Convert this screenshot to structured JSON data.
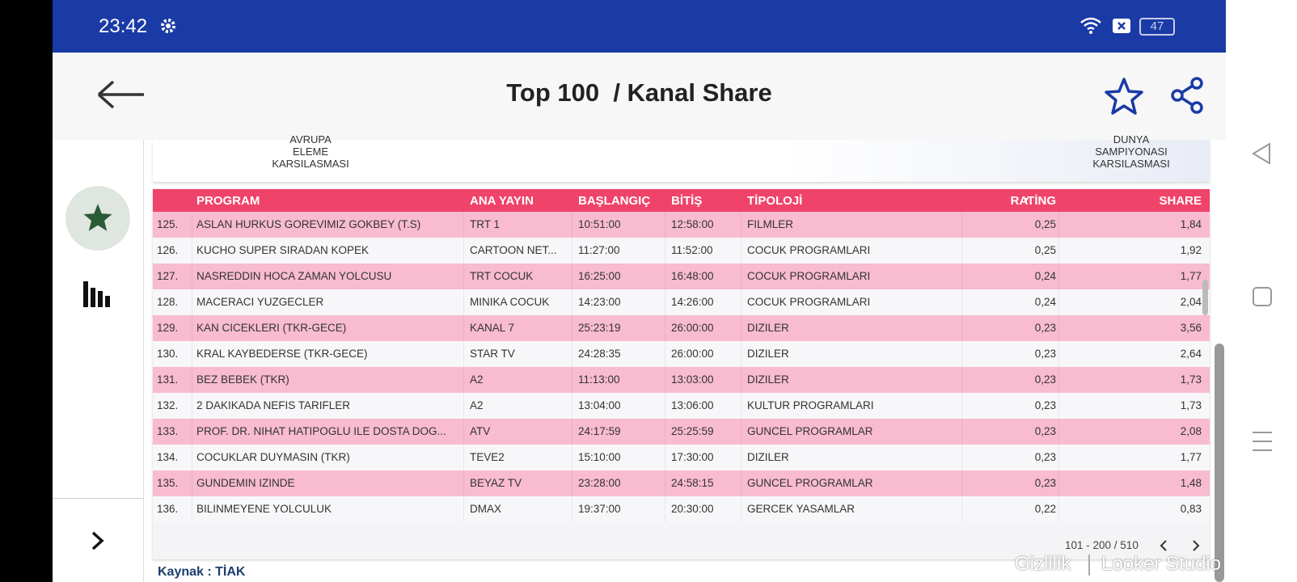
{
  "status": {
    "time": "23:42",
    "battery": "47"
  },
  "header": {
    "title": "Top 100  / Kanal Share"
  },
  "banner": {
    "left": [
      "AVRUPA",
      "ELEME",
      "KARSILASMASI"
    ],
    "right": [
      "DUNYA",
      "SAMPIYONASI",
      "KARSILASMASI"
    ]
  },
  "table": {
    "columns": [
      "",
      "PROGRAM",
      "ANA YAYIN",
      "BAŞLANGIÇ",
      "BİTİŞ",
      "TİPOLOJİ",
      "RATİNG",
      "SHARE"
    ],
    "rows": [
      [
        "125.",
        "ASLAN HURKUS GOREVIMIZ GOKBEY (T.S)",
        "TRT 1",
        "10:51:00",
        "12:58:00",
        "FILMLER",
        "0,25",
        "1,84"
      ],
      [
        "126.",
        "KUCHO SUPER SIRADAN KOPEK",
        "CARTOON NET...",
        "11:27:00",
        "11:52:00",
        "COCUK PROGRAMLARI",
        "0,25",
        "1,92"
      ],
      [
        "127.",
        "NASREDDIN HOCA ZAMAN YOLCUSU",
        "TRT COCUK",
        "16:25:00",
        "16:48:00",
        "COCUK PROGRAMLARI",
        "0,24",
        "1,77"
      ],
      [
        "128.",
        "MACERACI YUZGECLER",
        "MINIKA COCUK",
        "14:23:00",
        "14:26:00",
        "COCUK PROGRAMLARI",
        "0,24",
        "2,04"
      ],
      [
        "129.",
        "KAN CICEKLERI (TKR-GECE)",
        "KANAL 7",
        "25:23:19",
        "26:00:00",
        "DIZILER",
        "0,23",
        "3,56"
      ],
      [
        "130.",
        "KRAL KAYBEDERSE (TKR-GECE)",
        "STAR TV",
        "24:28:35",
        "26:00:00",
        "DIZILER",
        "0,23",
        "2,64"
      ],
      [
        "131.",
        "BEZ BEBEK (TKR)",
        "A2",
        "11:13:00",
        "13:03:00",
        "DIZILER",
        "0,23",
        "1,73"
      ],
      [
        "132.",
        "2 DAKIKADA NEFIS TARIFLER",
        "A2",
        "13:04:00",
        "13:06:00",
        "KULTUR PROGRAMLARI",
        "0,23",
        "1,73"
      ],
      [
        "133.",
        "PROF. DR. NIHAT HATIPOGLU ILE DOSTA DOG...",
        "ATV",
        "24:17:59",
        "25:25:59",
        "GUNCEL PROGRAMLAR",
        "0,23",
        "2,08"
      ],
      [
        "134.",
        "COCUKLAR DUYMASIN (TKR)",
        "TEVE2",
        "15:10:00",
        "17:30:00",
        "DIZILER",
        "0,23",
        "1,77"
      ],
      [
        "135.",
        "GUNDEMIN IZINDE",
        "BEYAZ TV",
        "23:28:00",
        "24:58:15",
        "GUNCEL PROGRAMLAR",
        "0,23",
        "1,48"
      ],
      [
        "136.",
        "BILINMEYENE YOLCULUK",
        "DMAX",
        "19:37:00",
        "20:30:00",
        "GERCEK YASAMLAR",
        "0,22",
        "0,83"
      ]
    ],
    "pagination": "101 - 200 / 510"
  },
  "footer": {
    "source": "Kaynak : TİAK",
    "privacy": "Gizlilik",
    "brand": "Looker Studio"
  }
}
